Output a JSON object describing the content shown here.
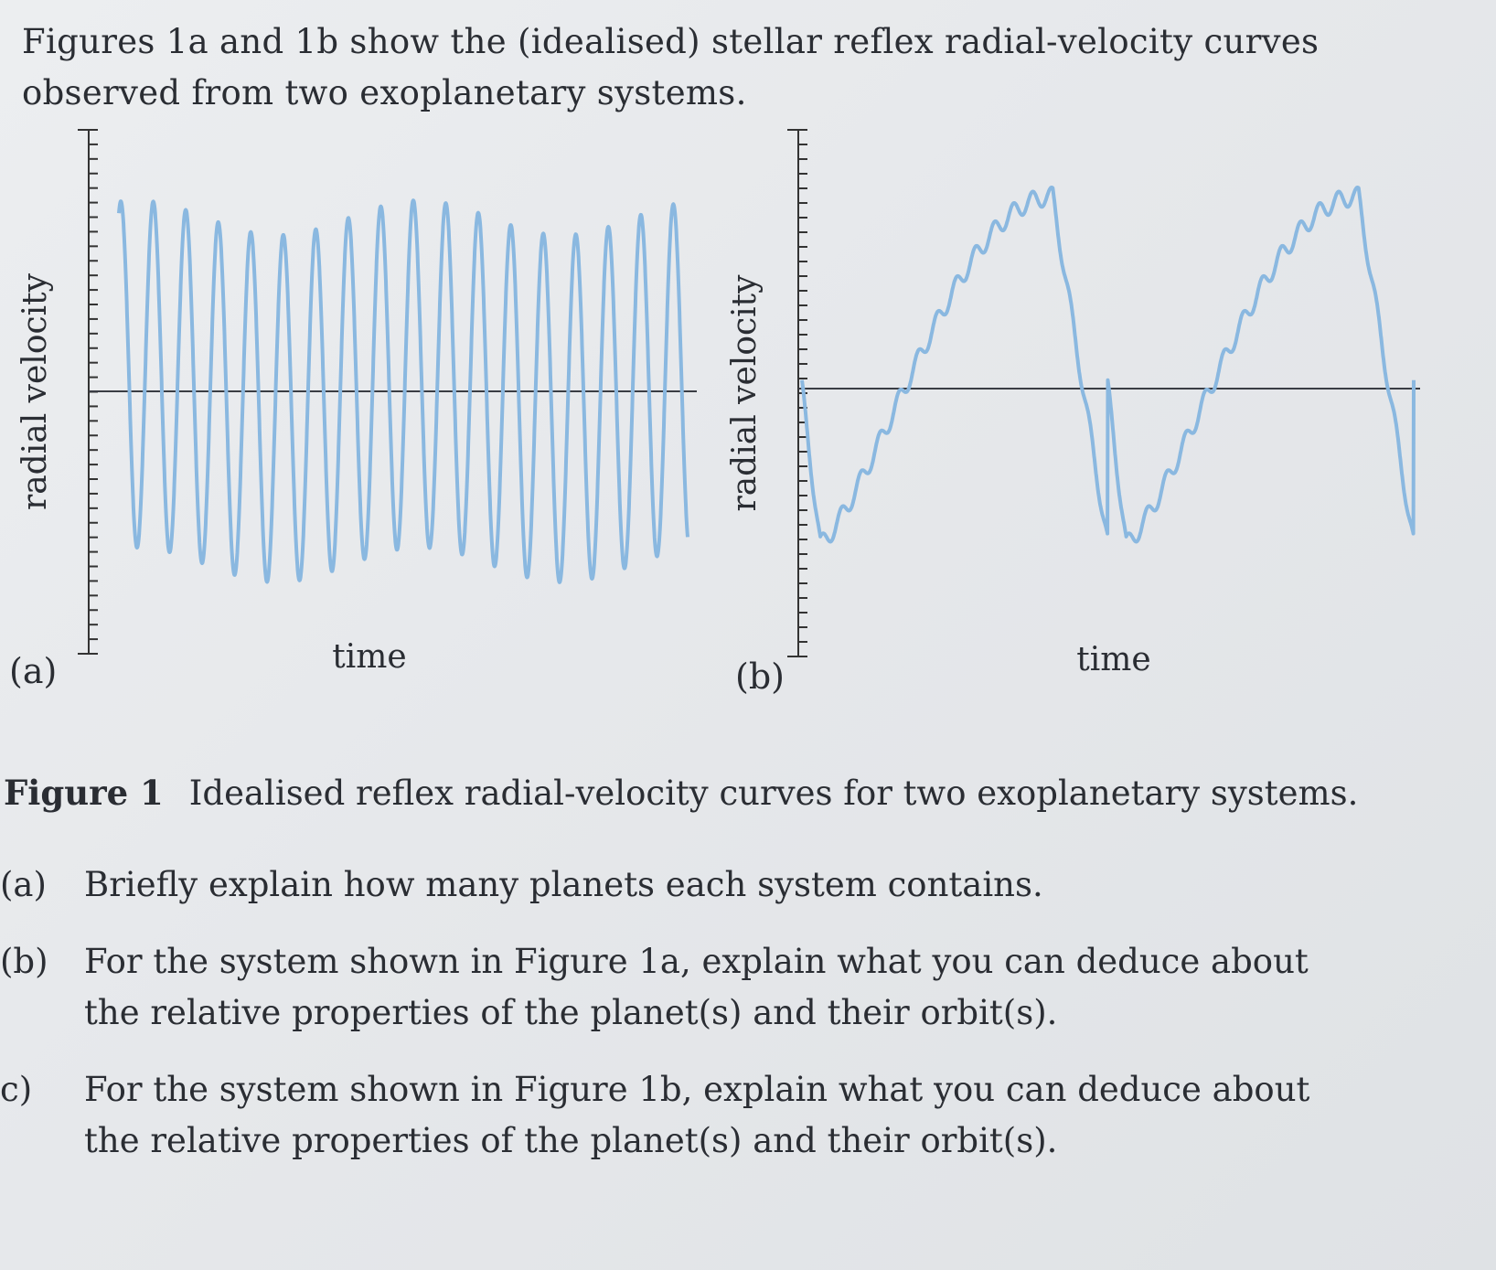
{
  "intro": {
    "line1": "Figures 1a and 1b show the (idealised) stellar reflex radial-velocity curves",
    "line2": "observed from two exoplanetary systems."
  },
  "figure": {
    "panel_a_label": "(a)",
    "panel_b_label": "(b)",
    "caption_label": "Figure 1",
    "caption_text": "Idealised reflex radial-velocity curves for two exoplanetary systems."
  },
  "chart_data": [
    {
      "type": "line",
      "panel": "(a)",
      "xlabel": "time",
      "ylabel": "radial velocity",
      "x_range": [
        0,
        1
      ],
      "y_range": [
        -1.3,
        1.3
      ],
      "series": [
        {
          "color": "#8ab8e0",
          "description": "one fast sinusoid with ~17.5 cycles, amplitude modulated by a slower weak component",
          "components": [
            {
              "cycles": 17.5,
              "amplitude": 1.0
            },
            {
              "cycles": 2.0,
              "amplitude": 0.1
            }
          ]
        }
      ],
      "grid": false,
      "zero_line": true
    },
    {
      "type": "line",
      "panel": "(b)",
      "xlabel": "time",
      "ylabel": "radial velocity",
      "x_range": [
        0,
        1
      ],
      "y_range": [
        -1.3,
        1.3
      ],
      "series": [
        {
          "color": "#8ab8e0",
          "description": "slow eccentric-orbit curve (~2 cycles) with a small high-frequency ripple",
          "components": [
            {
              "cycles": 2.0,
              "amplitude": 1.0,
              "shape": "eccentric"
            },
            {
              "cycles": 32.0,
              "amplitude": 0.05
            }
          ]
        }
      ],
      "grid": false,
      "zero_line": true
    }
  ],
  "questions": [
    {
      "marker": "(a)",
      "lines": [
        "Briefly explain how many planets each system contains."
      ]
    },
    {
      "marker": "(b)",
      "lines": [
        "For the system shown in Figure 1a, explain what you can deduce about",
        "the relative properties of the planet(s) and their orbit(s)."
      ]
    },
    {
      "marker": "c)",
      "lines": [
        "For the system shown in Figure 1b, explain what you can deduce about",
        "the relative properties of the planet(s) and their orbit(s)."
      ]
    }
  ]
}
